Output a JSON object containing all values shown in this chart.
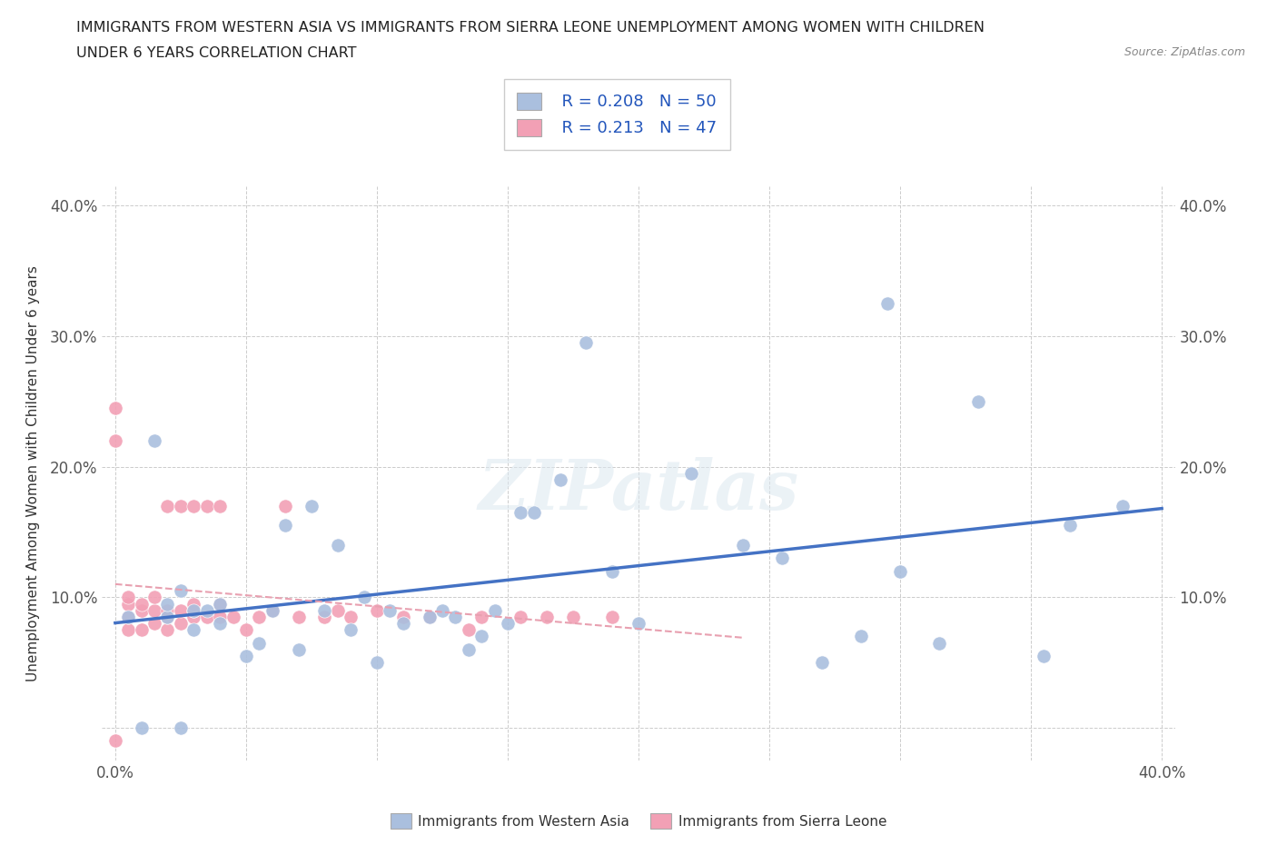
{
  "title_line1": "IMMIGRANTS FROM WESTERN ASIA VS IMMIGRANTS FROM SIERRA LEONE UNEMPLOYMENT AMONG WOMEN WITH CHILDREN",
  "title_line2": "UNDER 6 YEARS CORRELATION CHART",
  "source_text": "Source: ZipAtlas.com",
  "ylabel": "Unemployment Among Women with Children Under 6 years",
  "xlim": [
    -0.005,
    0.405
  ],
  "ylim": [
    -0.025,
    0.415
  ],
  "xticks": [
    0.0,
    0.05,
    0.1,
    0.15,
    0.2,
    0.25,
    0.3,
    0.35,
    0.4
  ],
  "yticks": [
    0.0,
    0.1,
    0.2,
    0.3,
    0.4
  ],
  "xtick_labels": [
    "0.0%",
    "",
    "",
    "",
    "",
    "",
    "",
    "",
    "40.0%"
  ],
  "ytick_labels": [
    "",
    "10.0%",
    "20.0%",
    "30.0%",
    "40.0%"
  ],
  "watermark": "ZIPatlas",
  "legend_r1": "R = 0.208",
  "legend_n1": "N = 50",
  "legend_r2": "R = 0.213",
  "legend_n2": "N = 47",
  "color_western_asia": "#aabfde",
  "color_sierra_leone": "#f2a0b5",
  "trendline_western_asia": "#4472c4",
  "trendline_sierra_leone": "#e8a0b0",
  "background_color": "#ffffff",
  "western_asia_x": [
    0.005,
    0.015,
    0.01,
    0.02,
    0.025,
    0.02,
    0.025,
    0.03,
    0.03,
    0.035,
    0.04,
    0.04,
    0.05,
    0.055,
    0.06,
    0.065,
    0.07,
    0.075,
    0.08,
    0.085,
    0.09,
    0.095,
    0.1,
    0.105,
    0.11,
    0.12,
    0.125,
    0.13,
    0.135,
    0.14,
    0.145,
    0.15,
    0.155,
    0.16,
    0.17,
    0.18,
    0.19,
    0.2,
    0.22,
    0.24,
    0.255,
    0.27,
    0.285,
    0.295,
    0.3,
    0.315,
    0.33,
    0.355,
    0.365,
    0.385
  ],
  "western_asia_y": [
    0.085,
    0.22,
    0.0,
    0.085,
    0.0,
    0.095,
    0.105,
    0.075,
    0.09,
    0.09,
    0.08,
    0.095,
    0.055,
    0.065,
    0.09,
    0.155,
    0.06,
    0.17,
    0.09,
    0.14,
    0.075,
    0.1,
    0.05,
    0.09,
    0.08,
    0.085,
    0.09,
    0.085,
    0.06,
    0.07,
    0.09,
    0.08,
    0.165,
    0.165,
    0.19,
    0.295,
    0.12,
    0.08,
    0.195,
    0.14,
    0.13,
    0.05,
    0.07,
    0.325,
    0.12,
    0.065,
    0.25,
    0.055,
    0.155,
    0.17
  ],
  "sierra_leone_x": [
    0.0,
    0.0,
    0.0,
    0.005,
    0.005,
    0.005,
    0.005,
    0.01,
    0.01,
    0.01,
    0.015,
    0.015,
    0.015,
    0.02,
    0.02,
    0.02,
    0.02,
    0.025,
    0.025,
    0.025,
    0.03,
    0.03,
    0.03,
    0.03,
    0.035,
    0.035,
    0.04,
    0.04,
    0.04,
    0.045,
    0.05,
    0.055,
    0.06,
    0.065,
    0.07,
    0.08,
    0.085,
    0.09,
    0.1,
    0.11,
    0.12,
    0.135,
    0.14,
    0.155,
    0.165,
    0.175,
    0.19
  ],
  "sierra_leone_y": [
    0.22,
    0.245,
    -0.01,
    0.075,
    0.085,
    0.095,
    0.1,
    0.075,
    0.09,
    0.095,
    0.08,
    0.09,
    0.1,
    0.075,
    0.085,
    0.09,
    0.17,
    0.08,
    0.09,
    0.17,
    0.085,
    0.09,
    0.095,
    0.17,
    0.085,
    0.17,
    0.085,
    0.095,
    0.17,
    0.085,
    0.075,
    0.085,
    0.09,
    0.17,
    0.085,
    0.085,
    0.09,
    0.085,
    0.09,
    0.085,
    0.085,
    0.075,
    0.085,
    0.085,
    0.085,
    0.085,
    0.085
  ]
}
